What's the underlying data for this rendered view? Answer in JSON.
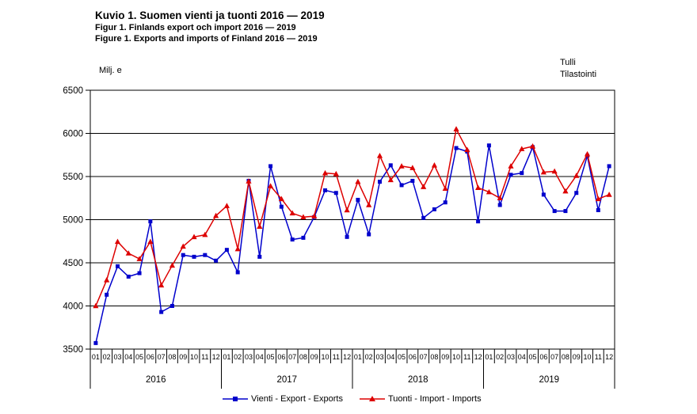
{
  "titles": {
    "main": "Kuvio 1. Suomen vienti ja tuonti 2016 — 2019",
    "sub_swedish": "Figur 1. Finlands export och import 2016 — 2019",
    "sub_english": "Figure 1. Exports and imports of Finland 2016 — 2019"
  },
  "unit_label": "Milj. e",
  "watermark": {
    "line1": "Tulli",
    "line2": "Tilastointi"
  },
  "colors": {
    "exports": "#0000cc",
    "imports": "#dd0000",
    "axis": "#000000",
    "background": "#ffffff"
  },
  "chart_data": {
    "type": "line",
    "title": "Kuvio 1. Suomen vienti ja tuonti 2016 — 2019",
    "ylabel": "Milj. e",
    "ylim": [
      3500,
      6500
    ],
    "yticks": [
      3500,
      4000,
      4500,
      5000,
      5500,
      6000,
      6500
    ],
    "grid": "horizontal",
    "legend_position": "bottom",
    "years": [
      "2016",
      "2017",
      "2018",
      "2019"
    ],
    "months": [
      "01",
      "02",
      "03",
      "04",
      "05",
      "06",
      "07",
      "08",
      "09",
      "10",
      "11",
      "12"
    ],
    "series": [
      {
        "name": "Vienti - Export - Exports",
        "color": "#0000cc",
        "marker": "square",
        "values": [
          3570,
          4130,
          4460,
          4340,
          4380,
          4980,
          3930,
          4000,
          4590,
          4570,
          4590,
          4525,
          4650,
          4390,
          5450,
          4570,
          5620,
          5150,
          4770,
          4790,
          5030,
          5340,
          5310,
          4800,
          5230,
          4830,
          5440,
          5630,
          5400,
          5450,
          5020,
          5120,
          5200,
          5830,
          5790,
          4980,
          5860,
          5170,
          5520,
          5540,
          5840,
          5290,
          5100,
          5100,
          5310,
          5740,
          5110,
          5620
        ]
      },
      {
        "name": "Tuonti - Import - Imports",
        "color": "#dd0000",
        "marker": "triangle",
        "values": [
          4000,
          4300,
          4745,
          4610,
          4545,
          4745,
          4240,
          4470,
          4690,
          4800,
          4825,
          5045,
          5160,
          4660,
          5445,
          4920,
          5390,
          5240,
          5075,
          5030,
          5040,
          5540,
          5530,
          5110,
          5440,
          5170,
          5740,
          5460,
          5620,
          5600,
          5380,
          5630,
          5360,
          6050,
          5810,
          5370,
          5320,
          5250,
          5620,
          5820,
          5850,
          5550,
          5560,
          5330,
          5510,
          5760,
          5240,
          5290
        ]
      }
    ]
  }
}
